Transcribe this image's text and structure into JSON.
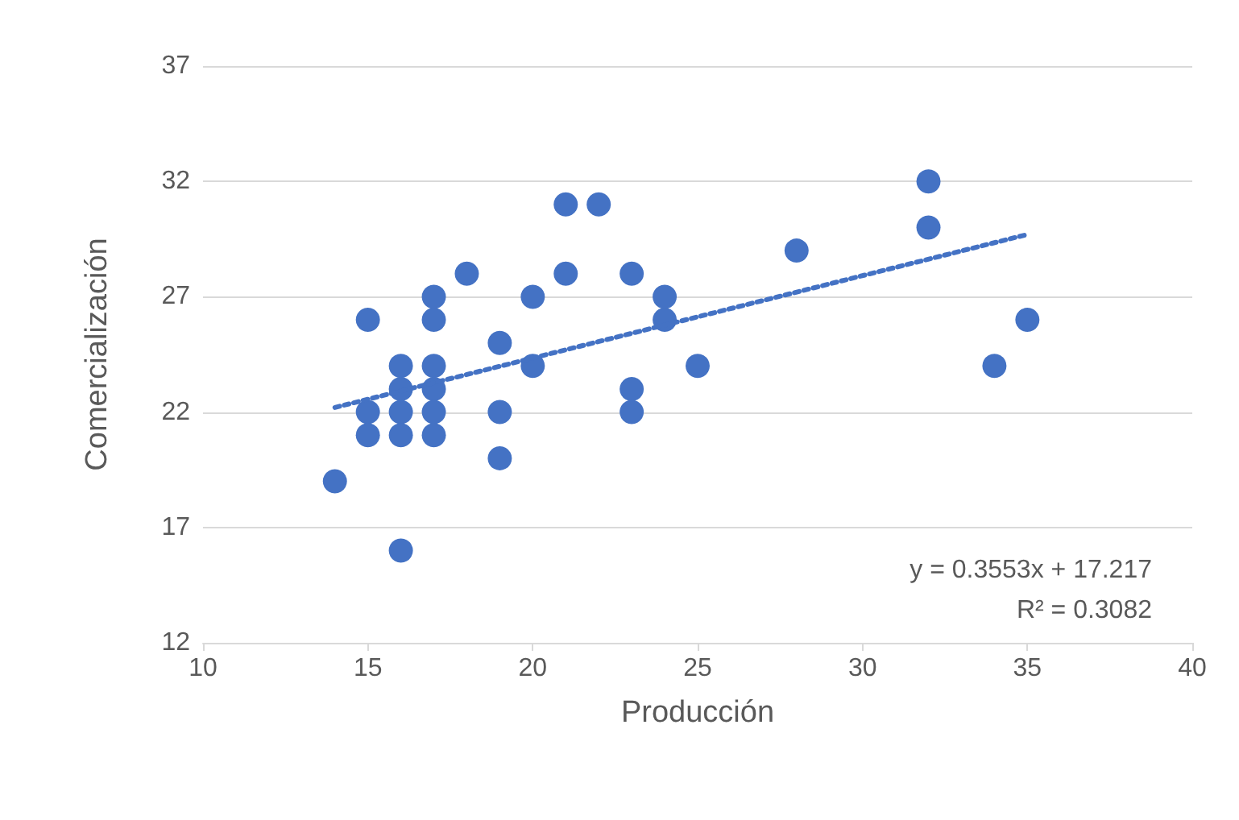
{
  "chart_data": {
    "type": "scatter",
    "xlabel": "Producción",
    "ylabel": "Comercialización",
    "xlim": [
      10,
      40
    ],
    "xticks": [
      10,
      15,
      20,
      25,
      30,
      35,
      40
    ],
    "ylim": [
      12,
      37
    ],
    "yticks": [
      12,
      17,
      22,
      27,
      32,
      37
    ],
    "grid": "y",
    "marker": "circle",
    "series": [
      {
        "color": "#4472c4",
        "x": [
          14,
          15,
          15,
          15,
          16,
          16,
          16,
          16,
          16,
          17,
          17,
          17,
          17,
          17,
          17,
          18,
          19,
          19,
          19,
          20,
          20,
          21,
          21,
          22,
          23,
          23,
          23,
          24,
          24,
          25,
          28,
          32,
          32,
          34,
          35
        ],
        "values": [
          19,
          26,
          22,
          21,
          24,
          23,
          22,
          21,
          16,
          27,
          26,
          24,
          23,
          22,
          21,
          28,
          25,
          22,
          20,
          27,
          24,
          31,
          28,
          31,
          28,
          23,
          22,
          27,
          26,
          24,
          29,
          32,
          30,
          24,
          26
        ]
      },
      {
        "type": "line",
        "color": "#4472c4",
        "line_style": "dotted",
        "marker": "none",
        "x": [
          14,
          35
        ],
        "values": [
          22.2,
          29.7
        ]
      }
    ],
    "annotations": [
      "y = 0.3553x + 17.217",
      "R² = 0.3082"
    ]
  }
}
